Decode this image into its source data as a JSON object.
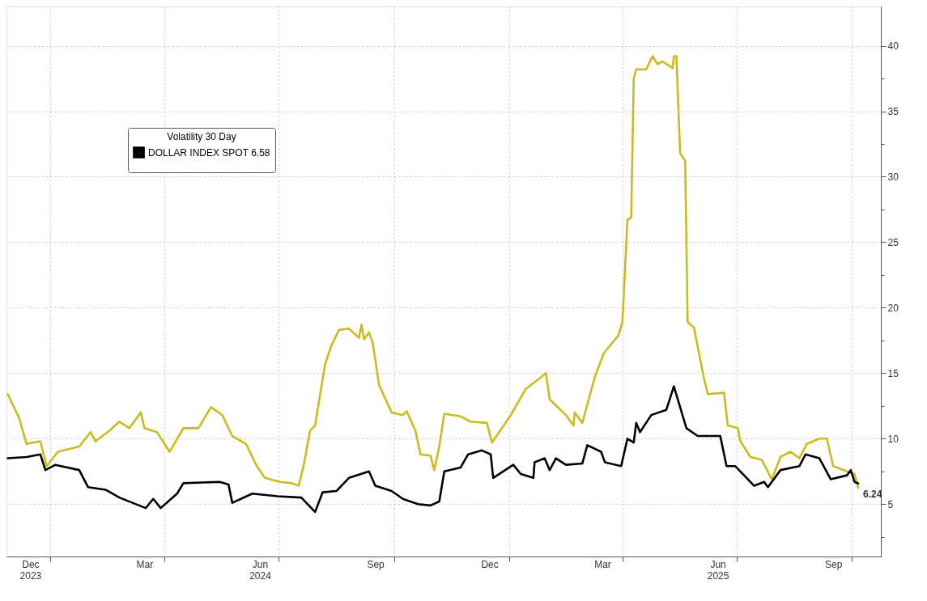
{
  "chart_data": {
    "type": "line",
    "legend_title": "Volatility 30 Day",
    "legend": "top left",
    "grid": true,
    "line_style": "solid",
    "marker": "none",
    "xlim": [
      "2023-11-27",
      "2025-10-24"
    ],
    "ylim": [
      1,
      43
    ],
    "xticks": [
      {
        "value": "2023-12-16",
        "label": "Dec\n2023"
      },
      {
        "value": "2024-01-01",
        "label": null
      },
      {
        "value": "2024-03-16",
        "label": "Mar"
      },
      {
        "value": "2024-04-01",
        "label": null
      },
      {
        "value": "2024-06-16",
        "label": "Jun\n2024"
      },
      {
        "value": "2024-07-01",
        "label": null
      },
      {
        "value": "2024-09-16",
        "label": "Sep"
      },
      {
        "value": "2024-10-01",
        "label": null
      },
      {
        "value": "2024-12-16",
        "label": "Dec"
      },
      {
        "value": "2025-01-01",
        "label": null
      },
      {
        "value": "2025-03-16",
        "label": "Mar"
      },
      {
        "value": "2025-04-01",
        "label": null
      },
      {
        "value": "2025-06-16",
        "label": "Jun\n2025"
      },
      {
        "value": "2025-07-01",
        "label": null
      },
      {
        "value": "2025-09-16",
        "label": "Sep"
      },
      {
        "value": "2025-10-01",
        "label": null
      }
    ],
    "yticks": [
      5,
      10,
      15,
      20,
      25,
      30,
      35,
      40,
      {
        "value": 2.5,
        "label": null
      },
      {
        "value": 7.5,
        "label": null
      },
      {
        "value": 12.5,
        "label": null
      },
      {
        "value": 17.5,
        "label": null
      },
      {
        "value": 22.5,
        "label": null
      },
      {
        "value": 27.5,
        "label": null
      },
      {
        "value": 32.5,
        "label": null
      },
      {
        "value": 37.5,
        "label": null
      }
    ],
    "series": [
      {
        "color": "#cdbb1d",
        "x": [
          "2023-11-28",
          "2023-12-07",
          "2023-12-13",
          "2023-12-24",
          "2023-12-29",
          "2024-01-07",
          "2024-01-24",
          "2024-02-02",
          "2024-02-06",
          "2024-02-17",
          "2024-02-25",
          "2024-03-04",
          "2024-03-13",
          "2024-03-16",
          "2024-03-26",
          "2024-04-05",
          "2024-04-16",
          "2024-04-28",
          "2024-05-08",
          "2024-05-17",
          "2024-05-25",
          "2024-06-05",
          "2024-06-13",
          "2024-06-20",
          "2024-07-02",
          "2024-07-11",
          "2024-07-17",
          "2024-07-21",
          "2024-07-26",
          "2024-07-30",
          "2024-08-07",
          "2024-08-12",
          "2024-08-18",
          "2024-08-26",
          "2024-09-03",
          "2024-09-05",
          "2024-09-07",
          "2024-09-11",
          "2024-09-14",
          "2024-09-19",
          "2024-09-29",
          "2024-10-08",
          "2024-10-11",
          "2024-10-18",
          "2024-10-22",
          "2024-10-30",
          "2024-11-02",
          "2024-11-06",
          "2024-11-10",
          "2024-11-23",
          "2024-12-01",
          "2024-12-14",
          "2024-12-18",
          "2025-01-02",
          "2025-01-14",
          "2025-01-25",
          "2025-01-30",
          "2025-02-02",
          "2025-02-15",
          "2025-02-21",
          "2025-02-22",
          "2025-02-28",
          "2025-03-10",
          "2025-03-17",
          "2025-03-29",
          "2025-04-01",
          "2025-04-05",
          "2025-04-08",
          "2025-04-10",
          "2025-04-12",
          "2025-04-20",
          "2025-04-25",
          "2025-04-29",
          "2025-05-03",
          "2025-05-11",
          "2025-05-12",
          "2025-05-14",
          "2025-05-17",
          "2025-05-21",
          "2025-05-23",
          "2025-05-28",
          "2025-06-05",
          "2025-06-08",
          "2025-06-21",
          "2025-06-24",
          "2025-07-02",
          "2025-07-04",
          "2025-07-12",
          "2025-07-21",
          "2025-07-29",
          "2025-08-05",
          "2025-08-13",
          "2025-08-20",
          "2025-08-26",
          "2025-09-05",
          "2025-09-11",
          "2025-09-16",
          "2025-09-27",
          "2025-10-03",
          "2025-10-06"
        ],
        "values": [
          13.4,
          11.6,
          9.6,
          9.8,
          7.9,
          9.0,
          9.4,
          10.5,
          9.8,
          10.6,
          11.3,
          10.8,
          12.0,
          10.8,
          10.5,
          9.0,
          10.8,
          10.8,
          12.4,
          11.8,
          10.2,
          9.6,
          8.0,
          7.0,
          6.7,
          6.6,
          6.4,
          8.0,
          10.6,
          11.0,
          15.7,
          17.1,
          18.3,
          18.4,
          17.7,
          18.7,
          17.6,
          18.1,
          17.3,
          14.1,
          12.0,
          11.8,
          12.1,
          10.6,
          8.8,
          8.7,
          7.6,
          9.4,
          11.9,
          11.7,
          11.3,
          11.2,
          9.7,
          11.8,
          13.8,
          14.6,
          15.0,
          13.0,
          11.8,
          11.0,
          12.0,
          11.2,
          14.7,
          16.5,
          17.9,
          18.9,
          26.7,
          26.9,
          37.5,
          38.2,
          38.2,
          39.2,
          38.6,
          38.8,
          38.3,
          39.2,
          39.2,
          31.8,
          31.2,
          18.9,
          18.5,
          14.6,
          13.4,
          13.5,
          11.0,
          10.8,
          9.8,
          8.6,
          8.4,
          6.9,
          8.6,
          9.0,
          8.5,
          9.6,
          10.0,
          10.0,
          7.9,
          7.5,
          7.3,
          6.24
        ],
        "value_labels": [
          null,
          null,
          null,
          null,
          null,
          null,
          null,
          null,
          null,
          null,
          null,
          null,
          null,
          null,
          null,
          null,
          null,
          null,
          null,
          null,
          null,
          null,
          null,
          null,
          null,
          null,
          null,
          null,
          null,
          null,
          null,
          null,
          null,
          null,
          null,
          null,
          null,
          null,
          null,
          null,
          null,
          null,
          null,
          null,
          null,
          null,
          null,
          null,
          null,
          null,
          null,
          null,
          null,
          null,
          null,
          null,
          null,
          null,
          null,
          null,
          null,
          null,
          null,
          null,
          null,
          null,
          null,
          null,
          null,
          null,
          null,
          null,
          null,
          null,
          null,
          null,
          null,
          null,
          null,
          null,
          null,
          null,
          null,
          null,
          null,
          null,
          null,
          null,
          null,
          null,
          null,
          null,
          null,
          null,
          null,
          null,
          null,
          null,
          null,
          "6.24"
        ]
      },
      {
        "name": "DOLLAR INDEX SPOT 6.58",
        "color": "#000000",
        "x": [
          "2023-11-28",
          "2023-12-13",
          "2023-12-24",
          "2023-12-28",
          "2024-01-05",
          "2024-01-24",
          "2024-01-31",
          "2024-02-14",
          "2024-02-25",
          "2024-03-17",
          "2024-03-23",
          "2024-03-29",
          "2024-04-11",
          "2024-04-16",
          "2024-05-15",
          "2024-05-22",
          "2024-05-25",
          "2024-06-10",
          "2024-06-30",
          "2024-07-19",
          "2024-07-30",
          "2024-08-05",
          "2024-08-16",
          "2024-08-26",
          "2024-09-11",
          "2024-09-16",
          "2024-09-29",
          "2024-10-08",
          "2024-10-20",
          "2024-10-30",
          "2024-11-06",
          "2024-11-10",
          "2024-11-23",
          "2024-11-29",
          "2024-12-10",
          "2024-12-17",
          "2024-12-19",
          "2025-01-04",
          "2025-01-10",
          "2025-01-20",
          "2025-01-21",
          "2025-01-29",
          "2025-02-02",
          "2025-02-07",
          "2025-02-15",
          "2025-02-28",
          "2025-03-04",
          "2025-03-15",
          "2025-03-18",
          "2025-03-31",
          "2025-04-05",
          "2025-04-10",
          "2025-04-12",
          "2025-04-15",
          "2025-04-24",
          "2025-05-06",
          "2025-05-12",
          "2025-05-17",
          "2025-05-22",
          "2025-05-31",
          "2025-06-18",
          "2025-06-23",
          "2025-06-30",
          "2025-07-15",
          "2025-07-23",
          "2025-07-26",
          "2025-08-05",
          "2025-08-20",
          "2025-08-25",
          "2025-09-05",
          "2025-09-14",
          "2025-09-27",
          "2025-09-30",
          "2025-10-03",
          "2025-10-06"
        ],
        "values": [
          8.5,
          8.6,
          8.8,
          7.6,
          8.0,
          7.6,
          6.3,
          6.1,
          5.5,
          4.7,
          5.4,
          4.7,
          5.8,
          6.6,
          6.7,
          6.5,
          5.1,
          5.8,
          5.6,
          5.5,
          4.4,
          5.9,
          6.0,
          7.0,
          7.5,
          6.4,
          6.0,
          5.4,
          5.0,
          4.9,
          5.2,
          7.5,
          7.8,
          8.8,
          9.1,
          8.8,
          7.0,
          8.0,
          7.3,
          7.0,
          8.2,
          8.5,
          7.6,
          8.5,
          8.0,
          8.1,
          9.5,
          9.0,
          8.2,
          7.9,
          10.0,
          9.7,
          11.2,
          10.5,
          11.8,
          12.2,
          14.0,
          12.4,
          10.8,
          10.2,
          10.2,
          7.9,
          7.9,
          6.4,
          6.7,
          6.3,
          7.6,
          7.9,
          8.8,
          8.5,
          6.9,
          7.2,
          7.6,
          6.7,
          6.58
        ]
      }
    ]
  }
}
